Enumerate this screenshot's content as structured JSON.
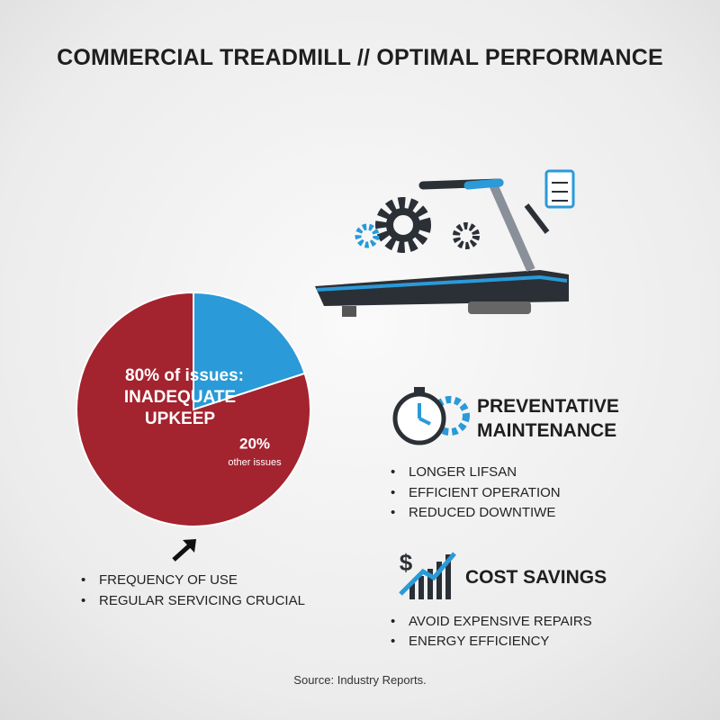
{
  "title": "COMMERCIAL TREADMILL // OPTIMAL PERFORMANCE",
  "chart_data": {
    "type": "pie",
    "categories": [
      "INADEQUATE UPKEEP",
      "other issues"
    ],
    "values": [
      80,
      20
    ],
    "value_labels": [
      "80% of issues:",
      "20%"
    ],
    "colors": [
      "#a3232f",
      "#2a9ad8"
    ]
  },
  "pie_notes": [
    "FREQUENCY OF USE",
    "REGULAR SERVICING CRUCIAL"
  ],
  "sections": [
    {
      "heading": "PREVENTATIVE MAINTENANCE",
      "items": [
        "LONGER LIFSAN",
        "EFFICIENT OPERATION",
        "REDUCED DOWNTIWE"
      ]
    },
    {
      "heading": "COST SAVINGS",
      "items": [
        "AVOID EXPENSIVE REPAIRS",
        "ENERGY EFFICIENCY"
      ]
    }
  ],
  "source": "Source: Industry Reports."
}
